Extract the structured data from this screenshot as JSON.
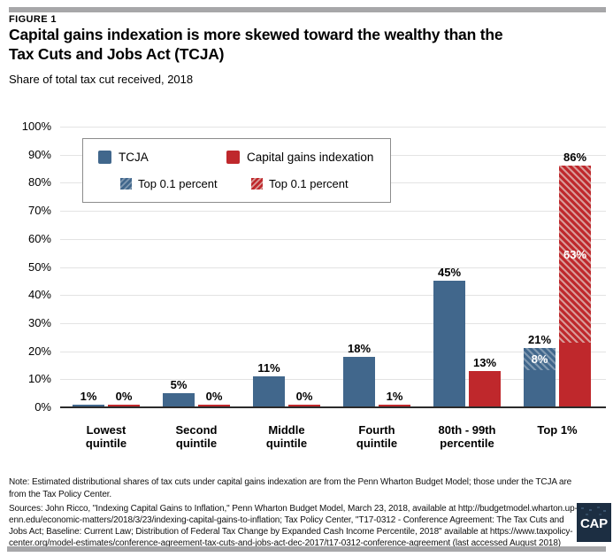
{
  "header": {
    "figure_label": "FIGURE 1",
    "title_line1": "Capital gains indexation is more skewed toward the wealthy than the",
    "title_line2": "Tax Cuts and Jobs Act (TCJA)",
    "subtitle": "Share of total tax cut received, 2018"
  },
  "legend": {
    "items": [
      {
        "label": "TCJA",
        "swatch": "blue-solid"
      },
      {
        "label": "Capital gains indexation",
        "swatch": "red-solid"
      },
      {
        "label": "Top 0.1 percent",
        "swatch": "blue-hatch"
      },
      {
        "label": "Top 0.1 percent",
        "swatch": "red-hatch"
      }
    ]
  },
  "chart_data": {
    "type": "bar",
    "title": "Capital gains indexation is more skewed toward the wealthy than the Tax Cuts and Jobs Act (TCJA)",
    "subtitle": "Share of total tax cut received, 2018",
    "categories": [
      "Lowest quintile",
      "Second quintile",
      "Middle quintile",
      "Fourth quintile",
      "80th - 99th percentile",
      "Top 1%"
    ],
    "category_label_lines": [
      [
        "Lowest",
        "quintile"
      ],
      [
        "Second",
        "quintile"
      ],
      [
        "Middle",
        "quintile"
      ],
      [
        "Fourth",
        "quintile"
      ],
      [
        "80th - 99th",
        "percentile"
      ],
      [
        "Top 1%"
      ]
    ],
    "series": [
      {
        "name": "TCJA",
        "color": "#41678c",
        "hatch_light": "#8099b1",
        "values": [
          1,
          5,
          11,
          18,
          45,
          21
        ],
        "value_labels": [
          "1%",
          "5%",
          "11%",
          "18%",
          "45%",
          "21%"
        ],
        "top_01_percent": {
          "category": "Top 1%",
          "value": 8,
          "label": "8%"
        }
      },
      {
        "name": "Capital gains indexation",
        "color": "#bf282c",
        "hatch_light": "#d89b98",
        "values": [
          0,
          0,
          0,
          1,
          13,
          86
        ],
        "value_labels": [
          "0%",
          "0%",
          "0%",
          "1%",
          "13%",
          "86%"
        ],
        "top_01_percent": {
          "category": "Top 1%",
          "value": 63,
          "label": "63%"
        }
      }
    ],
    "ylim": [
      0,
      100
    ],
    "yticks": [
      0,
      10,
      20,
      30,
      40,
      50,
      60,
      70,
      80,
      90,
      100
    ],
    "ytick_labels": [
      "0%",
      "10%",
      "20%",
      "30%",
      "40%",
      "50%",
      "60%",
      "70%",
      "80%",
      "90%",
      "100%"
    ],
    "grid": true,
    "legend_position": "top-left"
  },
  "notes": {
    "note_lines": [
      "Note: Estimated distributional shares of tax cuts under capital gains indexation are from the Penn Wharton Budget Model; those under the TCJA are",
      "from the Tax Policy Center."
    ],
    "sources_lines": [
      "Sources: John Ricco, \"Indexing Capital Gains to Inflation,\" Penn Wharton Budget Model, March 23, 2018, available at http://budgetmodel.wharton.up-",
      "enn.edu/economic-matters/2018/3/23/indexing-capital-gains-to-inflation; Tax Policy Center, \"T17-0312 - Conference Agreement: The Tax Cuts and",
      "Jobs Act; Baseline: Current Law; Distribution of Federal Tax Change by Expanded Cash Income Percentile, 2018\" available at https://www.taxpolicy-",
      "center.org/model-estimates/conference-agreement-tax-cuts-and-jobs-act-dec-2017/t17-0312-conference-agreement (last accessed August 2018)"
    ]
  },
  "logo": {
    "text": "CAP"
  },
  "colors": {
    "tcja_blue": "#41678c",
    "tcja_hatch_light": "#8099b1",
    "cgi_red": "#bf282c",
    "cgi_hatch_light": "#d89b98",
    "gridline": "#e3e3e3",
    "axis_line": "#2b2b2b",
    "rule_gray": "#a7a7a9",
    "logo_navy": "#1c2e42"
  }
}
